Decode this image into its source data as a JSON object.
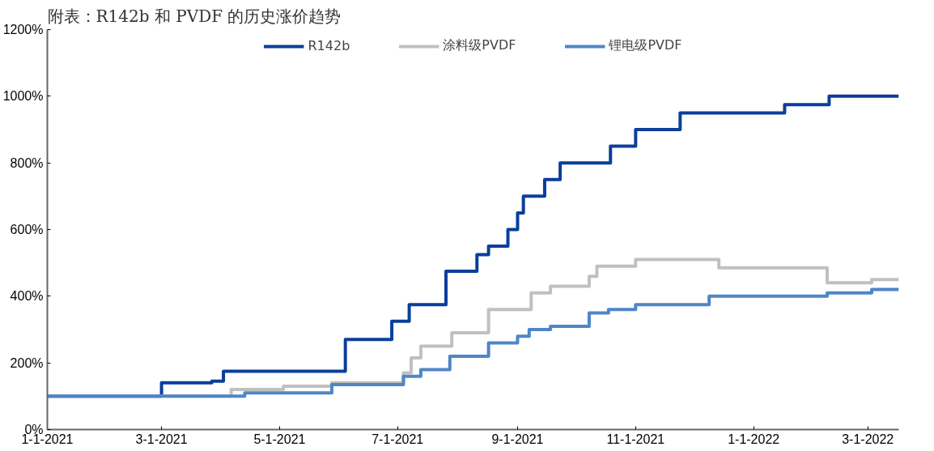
{
  "chart_data": {
    "type": "step",
    "title": "附表：R142b 和 PVDF 的历史涨价趋势",
    "xlim": [
      "2021-01-01",
      "2022-03-17"
    ],
    "ylim": [
      0,
      1200
    ],
    "xticks": [
      {
        "value": "2021-01-01",
        "label": "1-1-2021"
      },
      {
        "value": "2021-03-01",
        "label": "3-1-2021"
      },
      {
        "value": "2021-05-01",
        "label": "5-1-2021"
      },
      {
        "value": "2021-07-01",
        "label": "7-1-2021"
      },
      {
        "value": "2021-09-01",
        "label": "9-1-2021"
      },
      {
        "value": "2021-11-01",
        "label": "11-1-2021"
      },
      {
        "value": "2022-01-01",
        "label": "1-1-2022"
      },
      {
        "value": "2022-03-01",
        "label": "3-1-2022"
      }
    ],
    "yticks": [
      {
        "value": 0,
        "label": "0%"
      },
      {
        "value": 200,
        "label": "200%"
      },
      {
        "value": 400,
        "label": "400%"
      },
      {
        "value": 600,
        "label": "600%"
      },
      {
        "value": 800,
        "label": "800%"
      },
      {
        "value": 1000,
        "label": "1000%"
      },
      {
        "value": 1200,
        "label": "1200%"
      }
    ],
    "grid": false,
    "legend": "top",
    "line_style": "solid",
    "marker": "none",
    "series": [
      {
        "name": "R142b",
        "color": "#0a3f9a",
        "x": [
          "2021-01-01",
          "2021-03-01",
          "2021-03-27",
          "2021-04-02",
          "2021-06-04",
          "2021-06-28",
          "2021-07-07",
          "2021-07-26",
          "2021-08-11",
          "2021-08-17",
          "2021-08-27",
          "2021-09-01",
          "2021-09-04",
          "2021-09-15",
          "2021-09-23",
          "2021-10-19",
          "2021-11-01",
          "2021-11-24",
          "2022-01-17",
          "2022-02-09",
          "2022-03-17"
        ],
        "values": [
          100,
          140,
          145,
          175,
          270,
          325,
          375,
          475,
          525,
          550,
          600,
          650,
          700,
          750,
          800,
          850,
          900,
          950,
          975,
          1000,
          1000
        ]
      },
      {
        "name": "涂料级PVDF",
        "color": "#c0c0c0",
        "x": [
          "2021-01-01",
          "2021-04-06",
          "2021-05-03",
          "2021-05-28",
          "2021-07-04",
          "2021-07-08",
          "2021-07-13",
          "2021-07-29",
          "2021-08-17",
          "2021-09-08",
          "2021-09-18",
          "2021-10-08",
          "2021-10-12",
          "2021-11-01",
          "2021-12-14",
          "2022-02-08",
          "2022-03-03",
          "2022-03-17"
        ],
        "values": [
          100,
          120,
          130,
          140,
          170,
          215,
          250,
          290,
          360,
          410,
          430,
          460,
          490,
          510,
          485,
          440,
          450,
          450
        ]
      },
      {
        "name": "锂电级PVDF",
        "color": "#4f86c6",
        "x": [
          "2021-01-01",
          "2021-04-13",
          "2021-05-28",
          "2021-07-04",
          "2021-07-13",
          "2021-07-28",
          "2021-08-17",
          "2021-09-01",
          "2021-09-07",
          "2021-09-18",
          "2021-10-08",
          "2021-10-18",
          "2021-11-01",
          "2021-12-09",
          "2022-02-08",
          "2022-03-03",
          "2022-03-17"
        ],
        "values": [
          100,
          110,
          135,
          160,
          180,
          220,
          260,
          280,
          300,
          310,
          350,
          360,
          375,
          400,
          410,
          420,
          420
        ]
      }
    ]
  }
}
